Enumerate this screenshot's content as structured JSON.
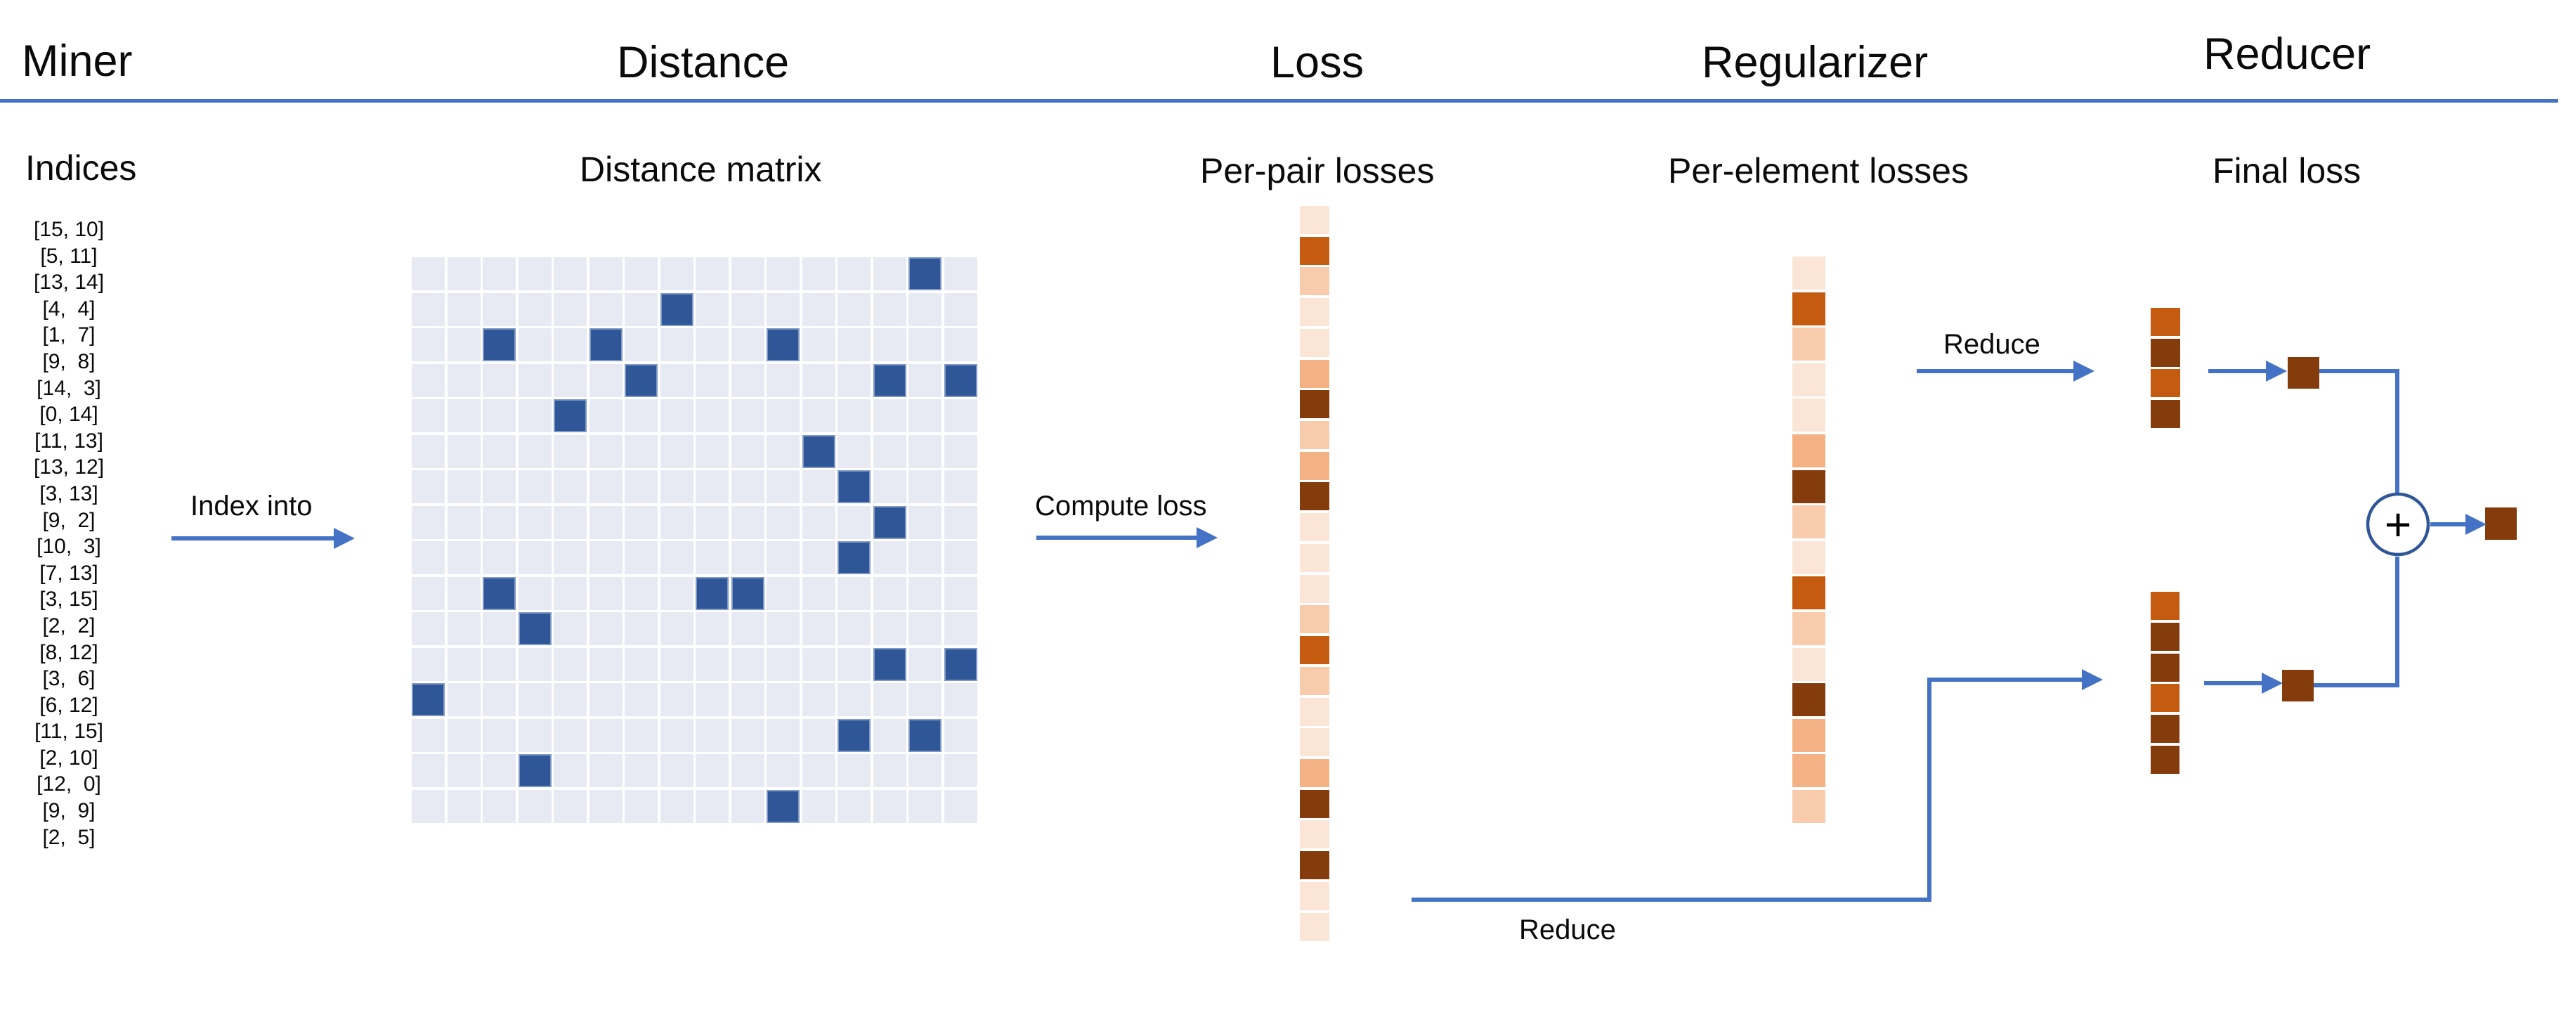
{
  "sections": [
    {
      "title": "Miner",
      "subtitle": "Indices"
    },
    {
      "title": "Distance",
      "subtitle": "Distance matrix"
    },
    {
      "title": "Loss",
      "subtitle": "Per-pair losses"
    },
    {
      "title": "Regularizer",
      "subtitle": "Per-element losses"
    },
    {
      "title": "Reducer",
      "subtitle": "Final loss"
    }
  ],
  "labels": {
    "index_into": "Index into",
    "compute_loss": "Compute loss",
    "reduce_top": "Reduce",
    "reduce_bottom": "Reduce",
    "plus": "+"
  },
  "indices": [
    "[15, 10]",
    "[5, 11]",
    "[13, 14]",
    "[4,  4]",
    "[1,  7]",
    "[9,  8]",
    "[14,  3]",
    "[0, 14]",
    "[11, 13]",
    "[13, 12]",
    "[3, 13]",
    "[9,  2]",
    "[10,  3]",
    "[7, 13]",
    "[3, 15]",
    "[2,  2]",
    "[8, 12]",
    "[3,  6]",
    "[6, 12]",
    "[11, 15]",
    "[2, 10]",
    "[12,  0]",
    "[9,  9]",
    "[2,  5]"
  ],
  "matrix": {
    "size": 16,
    "marked_cells": [
      [
        15,
        10
      ],
      [
        5,
        11
      ],
      [
        13,
        14
      ],
      [
        4,
        4
      ],
      [
        1,
        7
      ],
      [
        9,
        8
      ],
      [
        14,
        3
      ],
      [
        0,
        14
      ],
      [
        11,
        13
      ],
      [
        13,
        12
      ],
      [
        3,
        13
      ],
      [
        9,
        2
      ],
      [
        10,
        3
      ],
      [
        7,
        13
      ],
      [
        3,
        15
      ],
      [
        2,
        2
      ],
      [
        8,
        12
      ],
      [
        3,
        6
      ],
      [
        6,
        12
      ],
      [
        11,
        15
      ],
      [
        2,
        10
      ],
      [
        12,
        0
      ],
      [
        9,
        9
      ],
      [
        2,
        5
      ]
    ]
  },
  "per_pair_losses": [
    "l1",
    "d1",
    "l2",
    "l1",
    "l1",
    "l3",
    "d2",
    "l2",
    "l3",
    "d2",
    "l1",
    "l1",
    "l1",
    "l2",
    "d1",
    "l2",
    "l1",
    "l1",
    "l3",
    "d2",
    "l1",
    "d2",
    "l1",
    "l1"
  ],
  "per_element_losses": [
    "l1",
    "d1",
    "l2",
    "l1",
    "l1",
    "l3",
    "d2",
    "l2",
    "l1",
    "d1",
    "l2",
    "l1",
    "d2",
    "l3",
    "l3",
    "l2"
  ],
  "reducer": {
    "top_column": [
      "d1",
      "d2",
      "d1",
      "d2"
    ],
    "bottom_column": [
      "d1",
      "d2",
      "d2",
      "d1",
      "d2",
      "d2"
    ],
    "top_single_cell": "d2",
    "bottom_single_cell": "d2",
    "final_cell": "d2"
  },
  "colors": {
    "accent_blue": "#4472C4",
    "dark_blue": "#2F5697",
    "matrix_light": "#E8EAF3",
    "palette": {
      "l1": "#FBE5D6",
      "l2": "#F7CBAC",
      "l3": "#F4B183",
      "d1": "#C55A11",
      "d2": "#843C0C"
    }
  }
}
